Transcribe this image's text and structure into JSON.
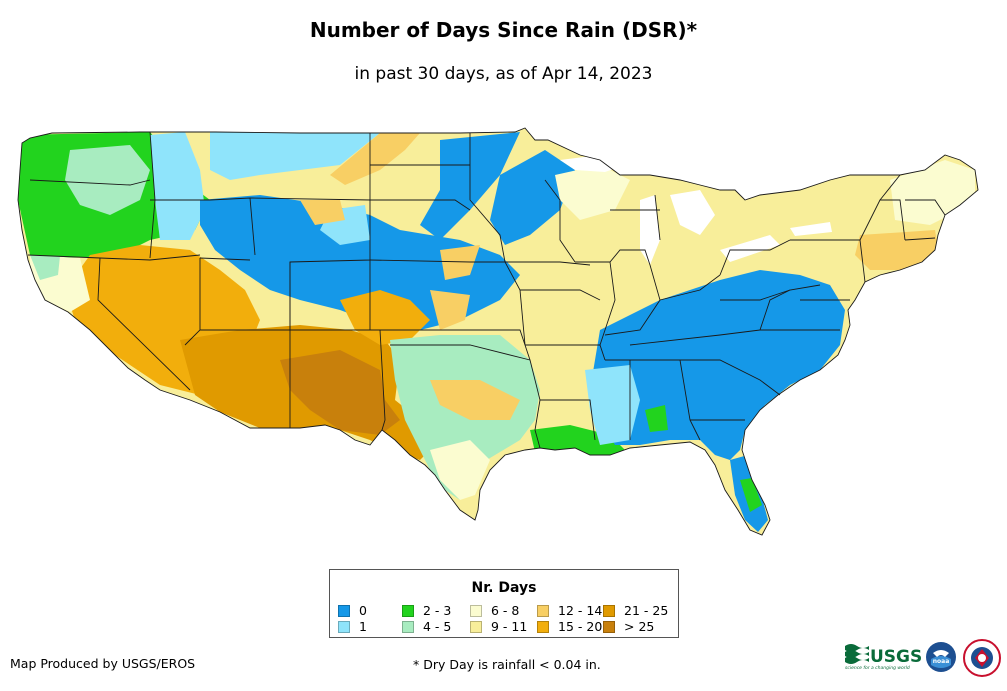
{
  "title": "Number of Days Since Rain (DSR)*",
  "subtitle": "in past 30 days, as of Apr 14, 2023",
  "legend": {
    "title": "Nr. Days",
    "items": [
      {
        "label": "0",
        "color": "#1598e8"
      },
      {
        "label": "1",
        "color": "#8fe4fb"
      },
      {
        "label": "2 - 3",
        "color": "#22d31e"
      },
      {
        "label": "4 - 5",
        "color": "#a8ecc0"
      },
      {
        "label": "6 - 8",
        "color": "#fbfcd0"
      },
      {
        "label": "9 - 11",
        "color": "#f8ee9a"
      },
      {
        "label": "12 - 14",
        "color": "#f8cf64"
      },
      {
        "label": "15 - 20",
        "color": "#f2ae0c"
      },
      {
        "label": "21 - 25",
        "color": "#e09a00"
      },
      {
        "label": "> 25",
        "color": "#c8800c"
      }
    ]
  },
  "credit": "Map Produced by USGS/EROS",
  "footnote": "* Dry Day is rainfall < 0.04 in.",
  "logos": {
    "usgs": "USGS",
    "usgs_tagline": "science for a changing world",
    "noaa": "noaa"
  }
}
